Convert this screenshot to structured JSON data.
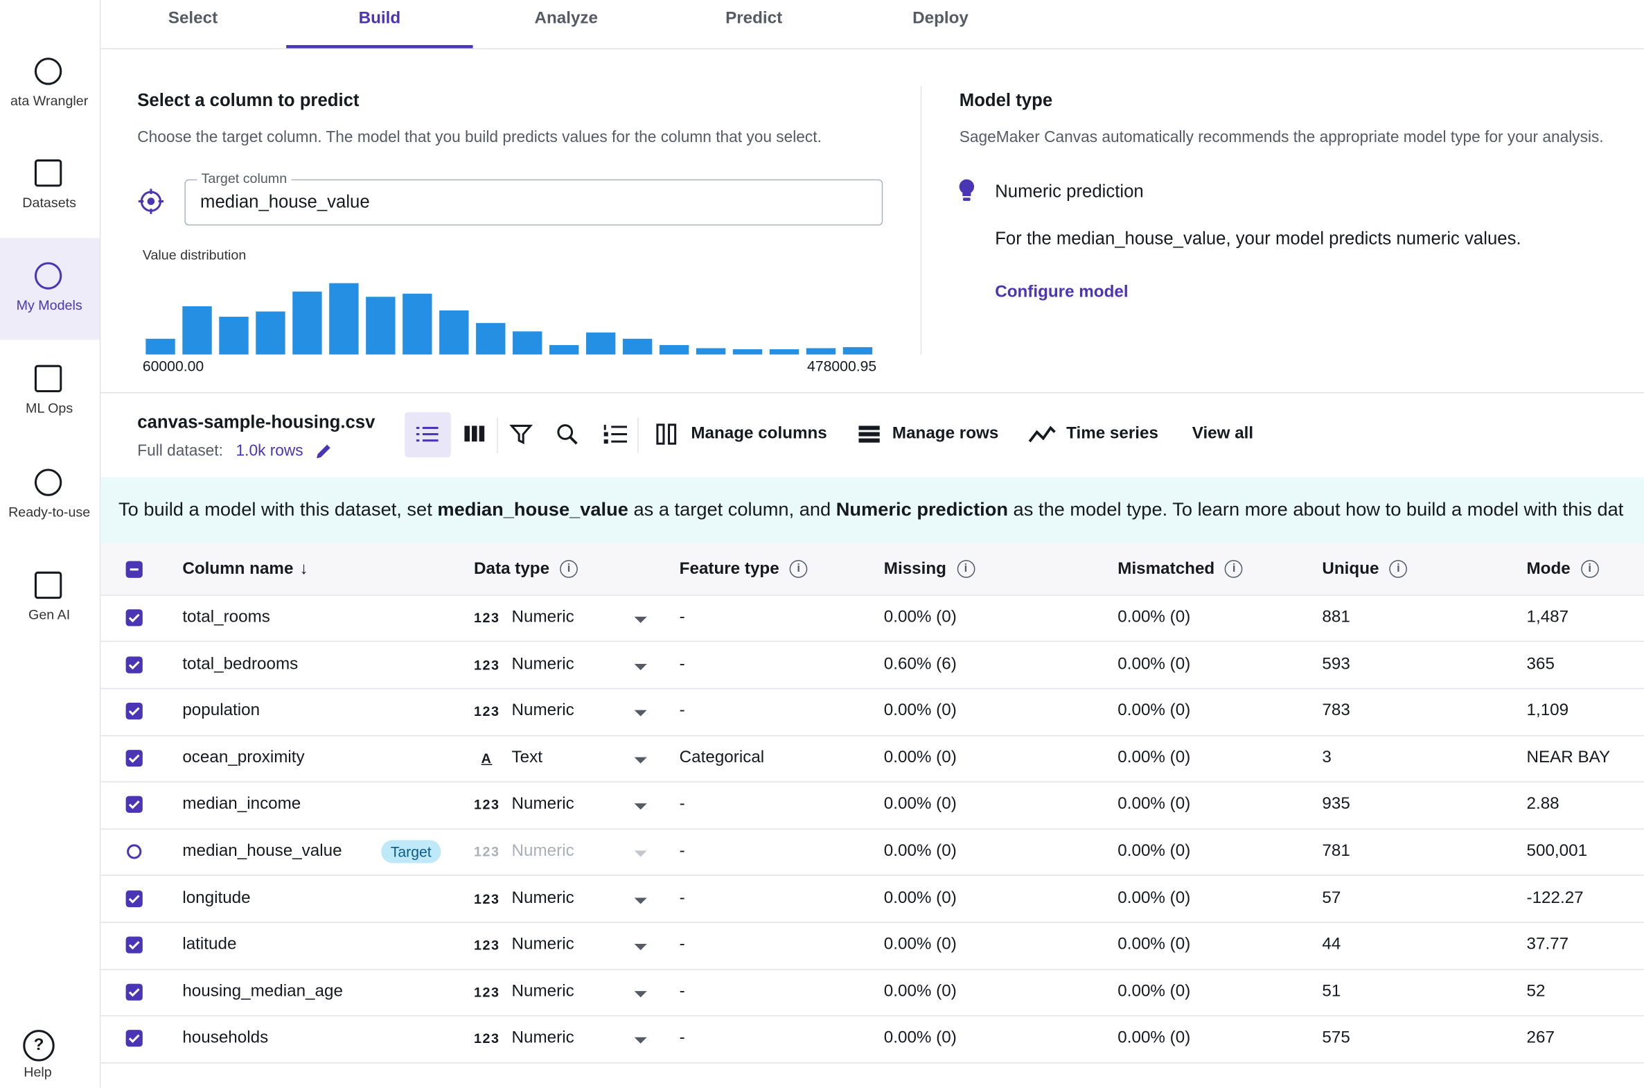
{
  "tabs": {
    "items": [
      "Select",
      "Build",
      "Analyze",
      "Predict",
      "Deploy"
    ],
    "active": 1
  },
  "sidebar": {
    "items": [
      "ata Wrangler",
      "Datasets",
      "My Models",
      "ML Ops",
      "Ready-to-use",
      "Gen AI"
    ],
    "active": 2,
    "help": "Help"
  },
  "target_section": {
    "title": "Select a column to predict",
    "description": "Choose the target column. The model that you build predicts values for the column that you select.",
    "field_label": "Target column",
    "field_value": "median_house_value",
    "distribution_label": "Value distribution",
    "histogram": {
      "values": [
        15,
        46,
        36,
        41,
        60,
        68,
        55,
        58,
        42,
        30,
        22,
        9,
        21,
        15,
        9,
        6,
        5,
        5,
        6,
        7
      ],
      "color": "#2590e3",
      "min_label": "60000.00",
      "max_label": "478000.95"
    }
  },
  "model_type": {
    "title": "Model type",
    "description": "SageMaker Canvas automatically recommends the appropriate model type for your analysis.",
    "option": "Numeric prediction",
    "option_description": "For the median_house_value, your model predicts numeric values.",
    "configure_link": "Configure model"
  },
  "dataset": {
    "name": "canvas-sample-housing.csv",
    "full_dataset_label": "Full dataset:",
    "rows": "1.0k rows",
    "actions": [
      "Manage columns",
      "Manage rows",
      "Time series",
      "View all"
    ]
  },
  "banner": {
    "parts": [
      {
        "text": "To build a model with this dataset, set ",
        "bold": false
      },
      {
        "text": "median_house_value",
        "bold": true
      },
      {
        "text": " as a target column, and ",
        "bold": false
      },
      {
        "text": "Numeric prediction",
        "bold": true
      },
      {
        "text": " as the model type. To learn more about how to build a model with this dat",
        "bold": false
      }
    ]
  },
  "table": {
    "headers": [
      "Column name",
      "Data type",
      "Feature type",
      "Missing",
      "Mismatched",
      "Unique",
      "Mode"
    ],
    "type_icons": {
      "Numeric": "123",
      "Text": "A"
    },
    "target_row": 5,
    "target_badge": "Target",
    "rows": [
      [
        "total_rooms",
        "Numeric",
        "-",
        "0.00% (0)",
        "0.00% (0)",
        "881",
        "1,487"
      ],
      [
        "total_bedrooms",
        "Numeric",
        "-",
        "0.60% (6)",
        "0.00% (0)",
        "593",
        "365"
      ],
      [
        "population",
        "Numeric",
        "-",
        "0.00% (0)",
        "0.00% (0)",
        "783",
        "1,109"
      ],
      [
        "ocean_proximity",
        "Text",
        "Categorical",
        "0.00% (0)",
        "0.00% (0)",
        "3",
        "NEAR BAY"
      ],
      [
        "median_income",
        "Numeric",
        "-",
        "0.00% (0)",
        "0.00% (0)",
        "935",
        "2.88"
      ],
      [
        "median_house_value",
        "Numeric",
        "-",
        "0.00% (0)",
        "0.00% (0)",
        "781",
        "500,001"
      ],
      [
        "longitude",
        "Numeric",
        "-",
        "0.00% (0)",
        "0.00% (0)",
        "57",
        "-122.27"
      ],
      [
        "latitude",
        "Numeric",
        "-",
        "0.00% (0)",
        "0.00% (0)",
        "44",
        "37.77"
      ],
      [
        "housing_median_age",
        "Numeric",
        "-",
        "0.00% (0)",
        "0.00% (0)",
        "51",
        "52"
      ],
      [
        "households",
        "Numeric",
        "-",
        "0.00% (0)",
        "0.00% (0)",
        "575",
        "267"
      ]
    ]
  }
}
